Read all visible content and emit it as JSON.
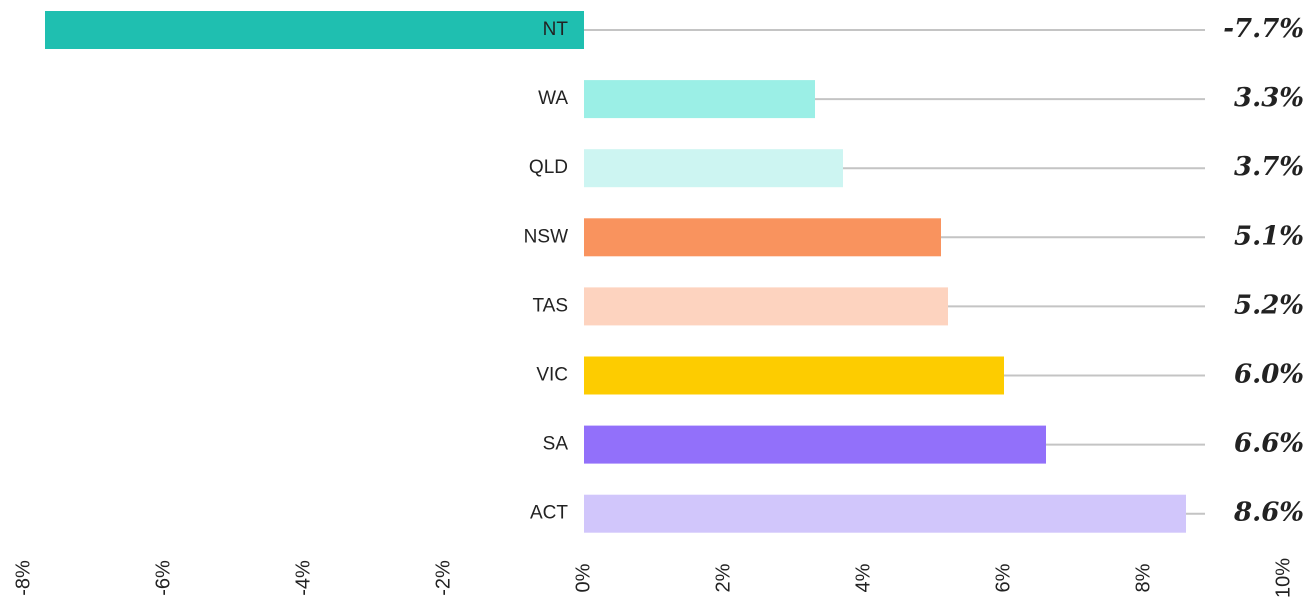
{
  "chart_data": {
    "type": "bar",
    "orientation": "horizontal",
    "categories": [
      "NT",
      "WA",
      "QLD",
      "NSW",
      "TAS",
      "VIC",
      "SA",
      "ACT"
    ],
    "values": [
      -7.7,
      3.3,
      3.7,
      5.1,
      5.2,
      6.0,
      6.6,
      8.6
    ],
    "value_labels": [
      "-7.7%",
      "3.3%",
      "3.7%",
      "5.1%",
      "5.2%",
      "6.0%",
      "6.6%",
      "8.6%"
    ],
    "colors": [
      "#1fbfb0",
      "#9befe6",
      "#cdf5f2",
      "#f9935e",
      "#fdd3bf",
      "#fdcc00",
      "#9270fa",
      "#d1c6fb"
    ],
    "xlim": [
      -8,
      10
    ],
    "xticks": [
      {
        "value": -8,
        "label": "-8%"
      },
      {
        "value": -6,
        "label": "-6%"
      },
      {
        "value": -4,
        "label": "-4%"
      },
      {
        "value": -2,
        "label": "-2%"
      },
      {
        "value": 0,
        "label": "0%"
      },
      {
        "value": 2,
        "label": "2%"
      },
      {
        "value": 4,
        "label": "4%"
      },
      {
        "value": 6,
        "label": "6%"
      },
      {
        "value": 8,
        "label": "8%"
      },
      {
        "value": 10,
        "label": "10%"
      }
    ]
  }
}
